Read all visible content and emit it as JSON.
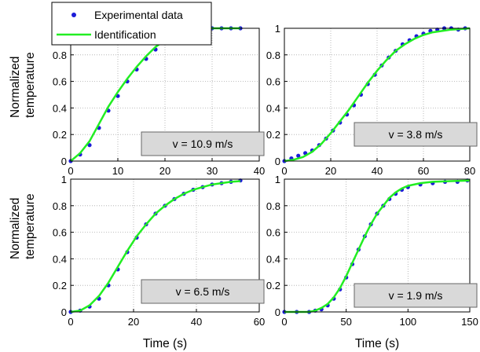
{
  "chart_data": [
    {
      "type": "line",
      "annotation": "v = 10.9 m/s",
      "ylabel": [
        "Normalized",
        "temperature"
      ],
      "xlabel": "",
      "xlim": [
        0,
        40
      ],
      "ylim": [
        0,
        1
      ],
      "xticks": [
        "0",
        "10",
        "20",
        "30",
        "40"
      ],
      "yticks": [
        "0",
        "0.2",
        "0.4",
        "0.6",
        "0.8",
        ""
      ],
      "grid": true,
      "series": [
        {
          "name": "Experimental data",
          "style": "dots",
          "color": "#1c1cd8",
          "points": [
            [
              0,
              0
            ],
            [
              2,
              0.05
            ],
            [
              4,
              0.12
            ],
            [
              6,
              0.25
            ],
            [
              8,
              0.38
            ],
            [
              10,
              0.49
            ],
            [
              12,
              0.6
            ],
            [
              14,
              0.69
            ],
            [
              16,
              0.77
            ],
            [
              18,
              0.84
            ],
            [
              20,
              0.9
            ],
            [
              22,
              0.95
            ],
            [
              24,
              0.98
            ],
            [
              26,
              0.99
            ],
            [
              28,
              1.0
            ],
            [
              30,
              1.0
            ],
            [
              32,
              1.0
            ],
            [
              34,
              1.0
            ],
            [
              36,
              1.0
            ]
          ]
        },
        {
          "name": "Identification",
          "style": "line",
          "color": "#22ee22",
          "points": [
            [
              0,
              0
            ],
            [
              2,
              0.06
            ],
            [
              4,
              0.15
            ],
            [
              6,
              0.28
            ],
            [
              8,
              0.41
            ],
            [
              10,
              0.52
            ],
            [
              12,
              0.62
            ],
            [
              14,
              0.71
            ],
            [
              16,
              0.79
            ],
            [
              18,
              0.86
            ],
            [
              20,
              0.91
            ],
            [
              22,
              0.95
            ],
            [
              24,
              0.98
            ],
            [
              26,
              0.995
            ],
            [
              28,
              1.0
            ],
            [
              32,
              1.0
            ],
            [
              36,
              1.0
            ]
          ]
        }
      ]
    },
    {
      "type": "line",
      "annotation": "v = 3.8 m/s",
      "ylabel": [],
      "xlabel": "",
      "xlim": [
        0,
        80
      ],
      "ylim": [
        0,
        1
      ],
      "xticks": [
        "0",
        "20",
        "40",
        "60",
        "80"
      ],
      "yticks": [
        "0",
        "0.2",
        "0.4",
        "0.6",
        "0.8",
        "1"
      ],
      "grid": true,
      "series": [
        {
          "name": "Experimental data",
          "style": "dots",
          "color": "#1c1cd8",
          "points": [
            [
              0,
              0.0
            ],
            [
              3,
              0.02
            ],
            [
              6,
              0.04
            ],
            [
              9,
              0.06
            ],
            [
              12,
              0.08
            ],
            [
              15,
              0.12
            ],
            [
              18,
              0.17
            ],
            [
              21,
              0.23
            ],
            [
              24,
              0.29
            ],
            [
              27,
              0.35
            ],
            [
              30,
              0.42
            ],
            [
              33,
              0.5
            ],
            [
              36,
              0.58
            ],
            [
              39,
              0.65
            ],
            [
              42,
              0.72
            ],
            [
              45,
              0.78
            ],
            [
              48,
              0.83
            ],
            [
              51,
              0.88
            ],
            [
              54,
              0.91
            ],
            [
              57,
              0.94
            ],
            [
              60,
              0.96
            ],
            [
              63,
              0.98
            ],
            [
              66,
              0.99
            ],
            [
              69,
              1.0
            ],
            [
              72,
              1.0
            ],
            [
              75,
              0.99
            ],
            [
              78,
              1.0
            ]
          ]
        },
        {
          "name": "Identification",
          "style": "line",
          "color": "#22ee22",
          "points": [
            [
              0,
              0
            ],
            [
              4,
              0.01
            ],
            [
              8,
              0.03
            ],
            [
              12,
              0.07
            ],
            [
              16,
              0.13
            ],
            [
              20,
              0.21
            ],
            [
              24,
              0.3
            ],
            [
              28,
              0.39
            ],
            [
              32,
              0.49
            ],
            [
              36,
              0.59
            ],
            [
              40,
              0.68
            ],
            [
              44,
              0.76
            ],
            [
              48,
              0.83
            ],
            [
              52,
              0.88
            ],
            [
              56,
              0.92
            ],
            [
              60,
              0.95
            ],
            [
              64,
              0.97
            ],
            [
              68,
              0.98
            ],
            [
              72,
              0.99
            ],
            [
              80,
              1.0
            ]
          ]
        }
      ]
    },
    {
      "type": "line",
      "annotation": "v = 6.5 m/s",
      "ylabel": [
        "Normalized",
        "temperature"
      ],
      "xlabel": "Time (s)",
      "xlim": [
        0,
        60
      ],
      "ylim": [
        0,
        1
      ],
      "xticks": [
        "0",
        "20",
        "40",
        "60"
      ],
      "yticks": [
        "0",
        "0.2",
        "0.4",
        "0.6",
        "0.8",
        "1"
      ],
      "grid": true,
      "series": [
        {
          "name": "Experimental data",
          "style": "dots",
          "color": "#1c1cd8",
          "points": [
            [
              0,
              0
            ],
            [
              3,
              0.01
            ],
            [
              6,
              0.04
            ],
            [
              9,
              0.1
            ],
            [
              12,
              0.2
            ],
            [
              15,
              0.32
            ],
            [
              18,
              0.45
            ],
            [
              21,
              0.56
            ],
            [
              24,
              0.66
            ],
            [
              27,
              0.74
            ],
            [
              30,
              0.8
            ],
            [
              33,
              0.85
            ],
            [
              36,
              0.89
            ],
            [
              39,
              0.92
            ],
            [
              42,
              0.94
            ],
            [
              45,
              0.96
            ],
            [
              48,
              0.97
            ],
            [
              51,
              0.98
            ],
            [
              54,
              0.99
            ]
          ]
        },
        {
          "name": "Identification",
          "style": "line",
          "color": "#22ee22",
          "points": [
            [
              0,
              0
            ],
            [
              3,
              0.01
            ],
            [
              6,
              0.05
            ],
            [
              9,
              0.12
            ],
            [
              12,
              0.22
            ],
            [
              15,
              0.34
            ],
            [
              18,
              0.46
            ],
            [
              21,
              0.57
            ],
            [
              24,
              0.66
            ],
            [
              27,
              0.74
            ],
            [
              30,
              0.8
            ],
            [
              33,
              0.85
            ],
            [
              36,
              0.89
            ],
            [
              39,
              0.92
            ],
            [
              42,
              0.94
            ],
            [
              45,
              0.96
            ],
            [
              48,
              0.97
            ],
            [
              51,
              0.98
            ],
            [
              54,
              0.985
            ]
          ]
        }
      ]
    },
    {
      "type": "line",
      "annotation": "v = 1.9 m/s",
      "ylabel": [],
      "xlabel": "Time (s)",
      "xlim": [
        0,
        150
      ],
      "ylim": [
        0,
        1
      ],
      "xticks": [
        "0",
        "50",
        "100",
        "150"
      ],
      "yticks": [
        "0",
        "0.2",
        "0.4",
        "0.6",
        "0.8",
        "1"
      ],
      "grid": true,
      "series": [
        {
          "name": "Experimental data",
          "style": "dots",
          "color": "#1c1cd8",
          "points": [
            [
              0,
              0
            ],
            [
              10,
              0
            ],
            [
              20,
              0
            ],
            [
              25,
              0.01
            ],
            [
              30,
              0.02
            ],
            [
              35,
              0.05
            ],
            [
              40,
              0.1
            ],
            [
              45,
              0.17
            ],
            [
              50,
              0.26
            ],
            [
              55,
              0.36
            ],
            [
              60,
              0.47
            ],
            [
              65,
              0.57
            ],
            [
              70,
              0.66
            ],
            [
              75,
              0.74
            ],
            [
              80,
              0.8
            ],
            [
              85,
              0.85
            ],
            [
              90,
              0.89
            ],
            [
              95,
              0.92
            ],
            [
              100,
              0.94
            ],
            [
              110,
              0.96
            ],
            [
              120,
              0.97
            ],
            [
              130,
              0.98
            ],
            [
              140,
              0.98
            ],
            [
              148,
              0.99
            ]
          ]
        },
        {
          "name": "Identification",
          "style": "line",
          "color": "#22ee22",
          "points": [
            [
              0,
              0
            ],
            [
              20,
              0
            ],
            [
              25,
              0.01
            ],
            [
              30,
              0.03
            ],
            [
              35,
              0.06
            ],
            [
              40,
              0.11
            ],
            [
              45,
              0.18
            ],
            [
              50,
              0.27
            ],
            [
              55,
              0.37
            ],
            [
              60,
              0.47
            ],
            [
              65,
              0.57
            ],
            [
              70,
              0.66
            ],
            [
              75,
              0.74
            ],
            [
              80,
              0.8
            ],
            [
              85,
              0.86
            ],
            [
              90,
              0.9
            ],
            [
              95,
              0.93
            ],
            [
              100,
              0.95
            ],
            [
              110,
              0.97
            ],
            [
              120,
              0.98
            ],
            [
              135,
              0.985
            ],
            [
              150,
              0.99
            ]
          ]
        }
      ]
    }
  ],
  "legend": {
    "entries": [
      {
        "label": "Experimental data",
        "style": "dots",
        "color": "#1c1cd8"
      },
      {
        "label": "Identification",
        "style": "line",
        "color": "#22ee22"
      }
    ]
  }
}
